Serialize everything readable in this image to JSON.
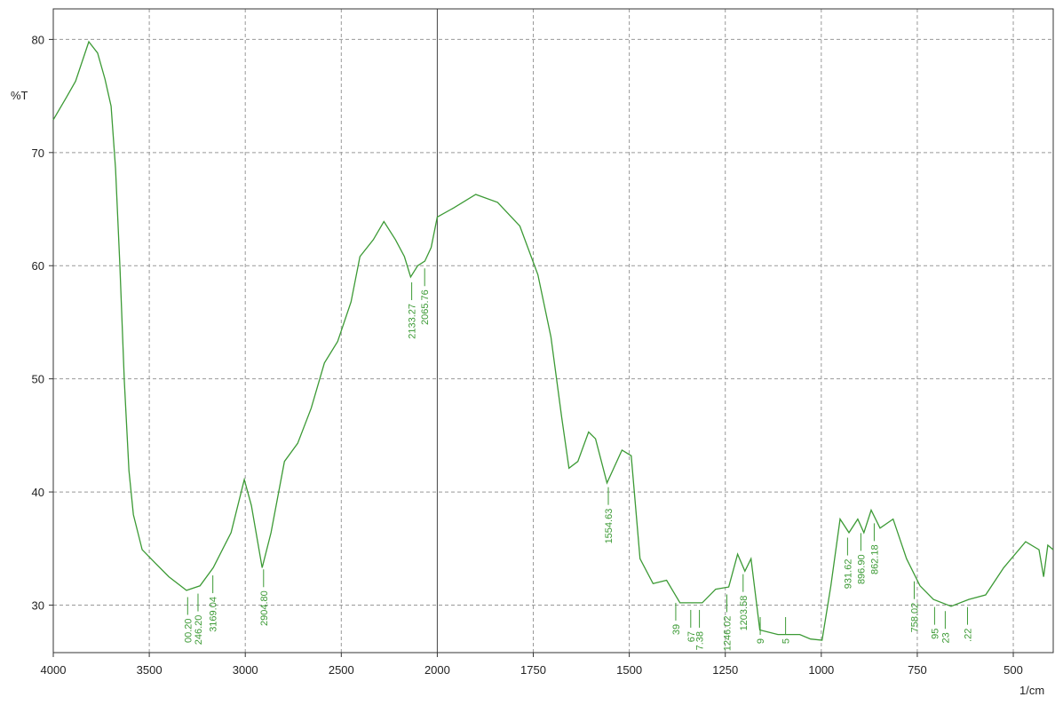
{
  "chart_data": {
    "type": "line",
    "y_label": "%T",
    "x_label": "1/cm",
    "xlim": [
      4000,
      396
    ],
    "xbreak": 2000,
    "ylim": [
      25.8,
      82.7
    ],
    "xticks": [
      4000,
      3500,
      3000,
      2500,
      2000,
      1750,
      1500,
      1250,
      1000,
      750,
      500
    ],
    "yticks": [
      30,
      40,
      50,
      60,
      70,
      80
    ],
    "grid": true,
    "color": "#3c9a35",
    "x": [
      4000,
      3931,
      3884,
      3815,
      3769,
      3731,
      3699,
      3676,
      3653,
      3630,
      3606,
      3583,
      3537,
      3468,
      3398,
      3306,
      3236,
      3167,
      3074,
      3005,
      2968,
      2912,
      2866,
      2796,
      2727,
      2657,
      2588,
      2519,
      2449,
      2403,
      2333,
      2278,
      2218,
      2171,
      2139,
      2102,
      2065,
      2032,
      2000,
      1958,
      1900,
      1843,
      1785,
      1738,
      1704,
      1676,
      1657,
      1634,
      1606,
      1588,
      1558,
      1542,
      1519,
      1495,
      1472,
      1438,
      1403,
      1368,
      1310,
      1275,
      1241,
      1218,
      1199,
      1183,
      1160,
      1113,
      1056,
      1028,
      998,
      975,
      951,
      928,
      905,
      889,
      870,
      847,
      813,
      778,
      743,
      708,
      662,
      616,
      572,
      525,
      468,
      433,
      421,
      410,
      396
    ],
    "values": [
      72.9,
      74.9,
      76.3,
      79.8,
      78.8,
      76.5,
      74.1,
      68.6,
      60,
      49.8,
      41.9,
      38,
      34.9,
      33.7,
      32.5,
      31.3,
      31.7,
      33.3,
      36.4,
      41.1,
      38.8,
      33.3,
      36.4,
      42.7,
      44.3,
      47.4,
      51.4,
      53.3,
      56.8,
      60.8,
      62.3,
      63.9,
      62.3,
      60.8,
      59,
      60,
      60.4,
      61.6,
      64.3,
      65.1,
      66.3,
      65.6,
      63.5,
      59.2,
      53.7,
      46.6,
      42.1,
      42.7,
      45.3,
      44.7,
      40.8,
      42,
      43.7,
      43.2,
      34.1,
      31.9,
      32.2,
      30.2,
      30.2,
      31.4,
      31.6,
      34.5,
      33,
      34.1,
      27.8,
      27.4,
      27.4,
      27,
      26.9,
      31.7,
      37.6,
      36.4,
      37.6,
      36.4,
      38.4,
      36.8,
      37.6,
      34.1,
      31.7,
      30.5,
      29.9,
      30.5,
      30.9,
      33.3,
      35.6,
      34.9,
      32.5,
      35.3,
      34.9
    ],
    "peaks": [
      {
        "x": 3300.2,
        "label": "00.20"
      },
      {
        "x": 3246.2,
        "label": "246.20"
      },
      {
        "x": 3169.04,
        "label": "3169.04"
      },
      {
        "x": 2904.8,
        "label": "2904.80"
      },
      {
        "x": 2133.27,
        "label": "2133.27"
      },
      {
        "x": 2065.76,
        "label": "2065.76"
      },
      {
        "x": 1554.63,
        "label": "1554.63"
      },
      {
        "x": 1379,
        "label": "39"
      },
      {
        "x": 1340,
        "label": "67"
      },
      {
        "x": 1317.38,
        "label": "7.38"
      },
      {
        "x": 1246.02,
        "label": "1246.02"
      },
      {
        "x": 1203.58,
        "label": "1203.58"
      },
      {
        "x": 1159,
        "label": "9"
      },
      {
        "x": 1093,
        "label": "5"
      },
      {
        "x": 931.62,
        "label": "931.62"
      },
      {
        "x": 896.9,
        "label": "896.90"
      },
      {
        "x": 862.18,
        "label": "862.18"
      },
      {
        "x": 758.02,
        "label": "758.02"
      },
      {
        "x": 704.95,
        "label": "95"
      },
      {
        "x": 677.23,
        "label": "23"
      },
      {
        "x": 619.22,
        "label": ".22"
      }
    ]
  }
}
